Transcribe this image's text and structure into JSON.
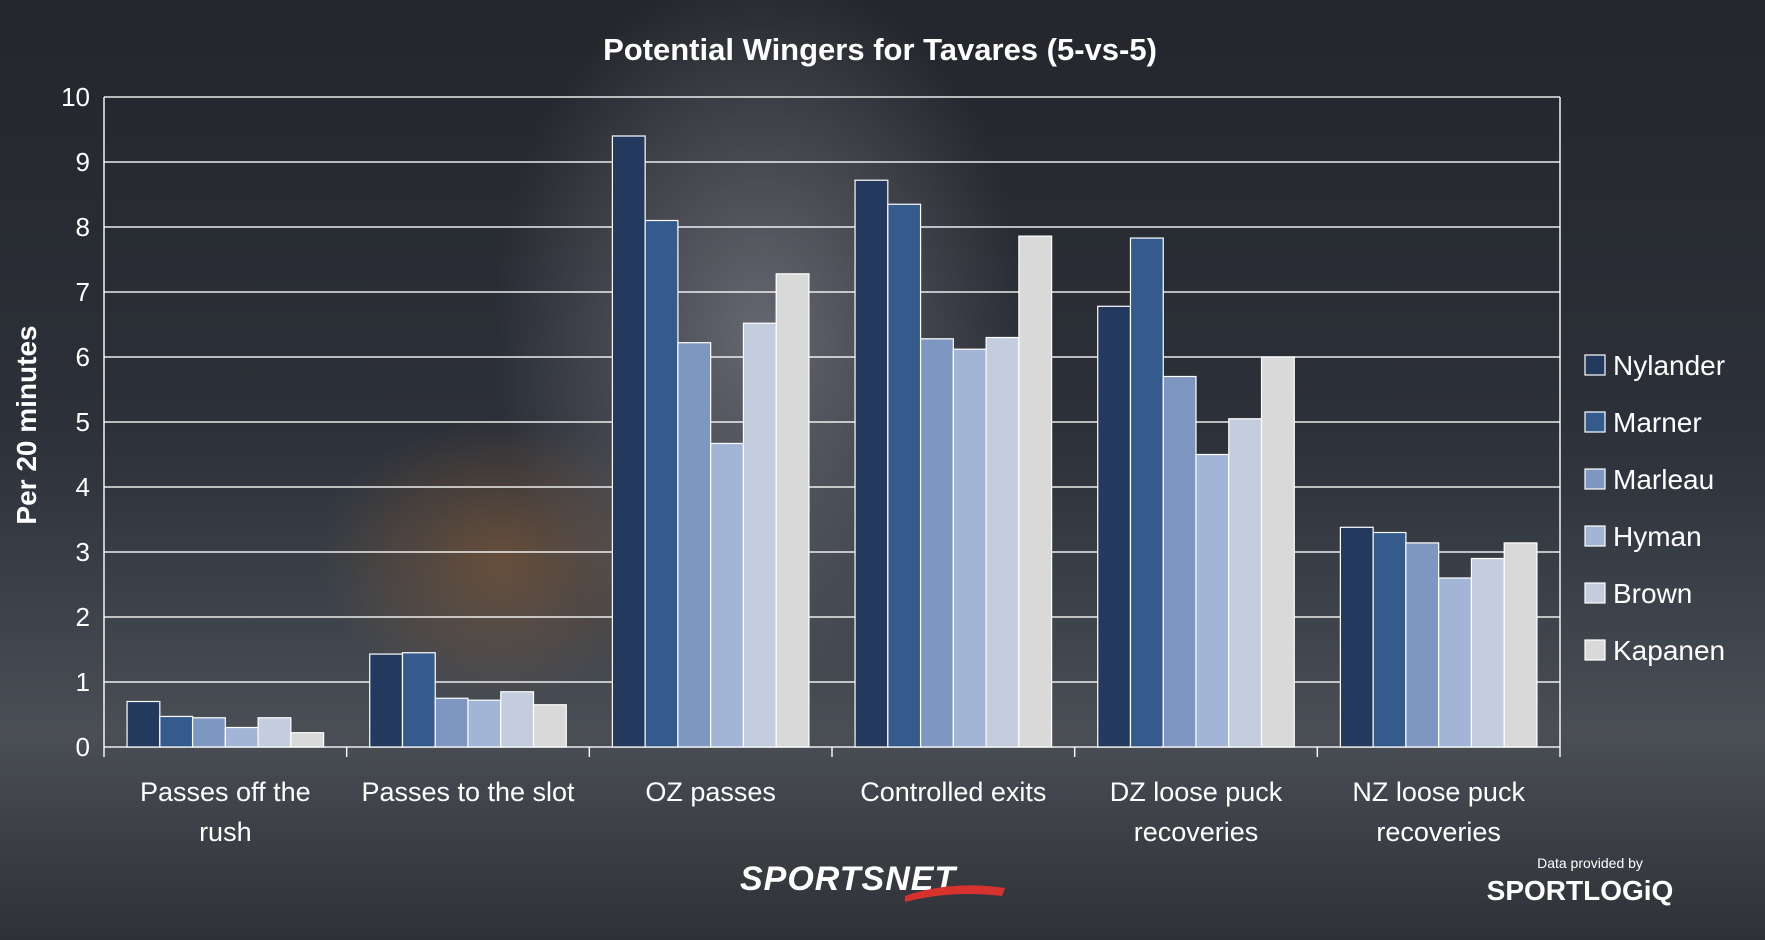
{
  "chart_data": {
    "type": "bar",
    "title": "Potential Wingers for Tavares (5-vs-5)",
    "xlabel": "",
    "ylabel": "Per 20 minutes",
    "ylim": [
      0,
      10
    ],
    "yticks": [
      0,
      1,
      2,
      3,
      4,
      5,
      6,
      7,
      8,
      9,
      10
    ],
    "grid": true,
    "legend_position": "right",
    "categories": [
      [
        "Passes off the",
        "rush"
      ],
      [
        "Passes to the slot"
      ],
      [
        "OZ passes"
      ],
      [
        "Controlled exits"
      ],
      [
        "DZ loose puck",
        "recoveries"
      ],
      [
        "NZ loose puck",
        "recoveries"
      ]
    ],
    "series": [
      {
        "name": "Nylander",
        "color": "#233a5e",
        "values": [
          0.7,
          1.43,
          9.4,
          8.72,
          6.78,
          3.38
        ]
      },
      {
        "name": "Marner",
        "color": "#355a8c",
        "values": [
          0.47,
          1.45,
          8.1,
          8.35,
          7.83,
          3.3
        ]
      },
      {
        "name": "Marleau",
        "color": "#7e97c0",
        "values": [
          0.45,
          0.75,
          6.22,
          6.28,
          5.7,
          3.14
        ]
      },
      {
        "name": "Hyman",
        "color": "#a2b5d6",
        "values": [
          0.3,
          0.72,
          4.67,
          6.12,
          4.5,
          2.6
        ]
      },
      {
        "name": "Brown",
        "color": "#c3cddd",
        "values": [
          0.45,
          0.85,
          6.52,
          6.3,
          5.05,
          2.9
        ]
      },
      {
        "name": "Kapanen",
        "color": "#d9d9d9",
        "values": [
          0.22,
          0.65,
          7.28,
          7.86,
          6.0,
          3.14
        ]
      }
    ]
  },
  "branding": {
    "sportsnet": "SPORTSNET",
    "provided_by": "Data provided by",
    "sportlogiq": "SPORTLOGiQ"
  }
}
